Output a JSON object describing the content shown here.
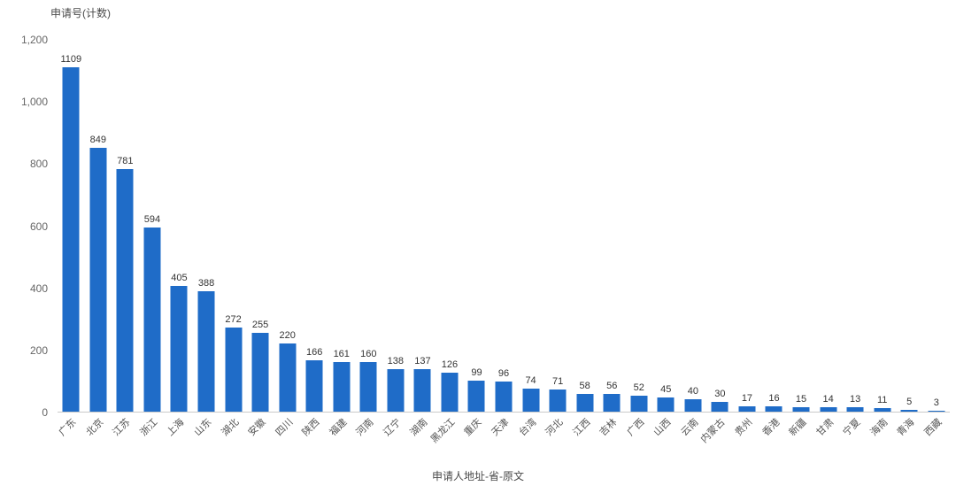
{
  "chart_data": {
    "type": "bar",
    "title": "",
    "ylabel": "申请号(计数)",
    "xlabel": "申请人地址-省-原文",
    "ylim": [
      0,
      1200
    ],
    "grid": false,
    "legend": "none",
    "bar_color": "#1f6cc8",
    "yticks": [
      {
        "value": 0,
        "label": "0"
      },
      {
        "value": 200,
        "label": "200"
      },
      {
        "value": 400,
        "label": "400"
      },
      {
        "value": 600,
        "label": "600"
      },
      {
        "value": 800,
        "label": "800"
      },
      {
        "value": 1000,
        "label": "1,000"
      },
      {
        "value": 1200,
        "label": "1,200"
      }
    ],
    "categories": [
      "广东",
      "北京",
      "江苏",
      "浙江",
      "上海",
      "山东",
      "湖北",
      "安徽",
      "四川",
      "陕西",
      "福建",
      "河南",
      "辽宁",
      "湖南",
      "黑龙江",
      "重庆",
      "天津",
      "台湾",
      "河北",
      "江西",
      "吉林",
      "广西",
      "山西",
      "云南",
      "内蒙古",
      "贵州",
      "香港",
      "新疆",
      "甘肃",
      "宁夏",
      "海南",
      "青海",
      "西藏"
    ],
    "values": [
      1109,
      849,
      781,
      594,
      405,
      388,
      272,
      255,
      220,
      166,
      161,
      160,
      138,
      137,
      126,
      99,
      96,
      74,
      71,
      58,
      56,
      52,
      45,
      40,
      30,
      17,
      16,
      15,
      14,
      13,
      11,
      5,
      3
    ]
  }
}
